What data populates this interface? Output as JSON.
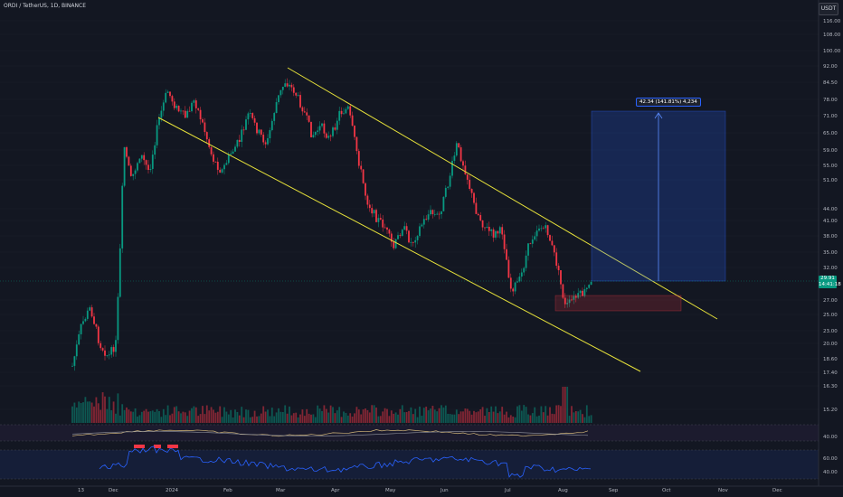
{
  "header": {
    "symbol_line": "ORDI / TetherUS, 1D, BINANCE"
  },
  "toolbar": {
    "currency": "USDT"
  },
  "price_axis": {
    "labels": [
      "116.00",
      "108.00",
      "100.00",
      "92.00",
      "84.50",
      "78.00",
      "71.00",
      "65.00",
      "59.00",
      "55.00",
      "51.00",
      "44.00",
      "41.00",
      "38.00",
      "35.00",
      "32.00",
      "27.00",
      "25.00",
      "23.00",
      "20.00",
      "18.60",
      "17.40",
      "16.30",
      "15.20"
    ],
    "last_price": "29.91",
    "countdown": "14:41:18"
  },
  "indicator_axis": {
    "rsi_labels": [
      "60.00",
      "40.00"
    ],
    "vol_label": "40.00"
  },
  "time_axis": {
    "labels": [
      "13",
      "Dec",
      "2024",
      "Feb",
      "Mar",
      "Apr",
      "May",
      "Jun",
      "Jul",
      "Aug",
      "Sep",
      "Oct",
      "Nov",
      "Dec"
    ]
  },
  "measure_tool": {
    "label": "42.34 (141.81%) 4,234"
  },
  "colors": {
    "background": "#131722",
    "up": "#089981",
    "down": "#f23645",
    "channel": "#e6e13a",
    "rsi": "#2962ff",
    "measure": "#2962ff"
  }
}
